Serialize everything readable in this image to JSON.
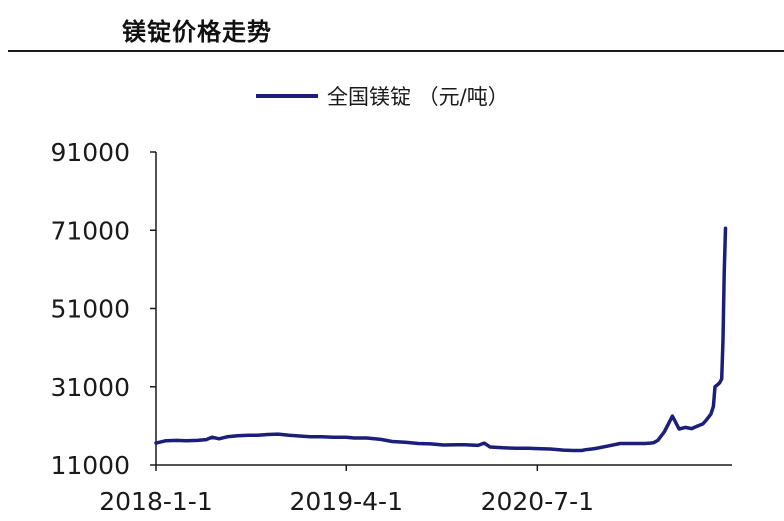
{
  "header": {
    "title": "镁锭价格走势"
  },
  "colors": {
    "series": "#1c1f7a",
    "axis": "#1a1a1a"
  },
  "chart_data": {
    "type": "line",
    "title": "",
    "xlabel": "",
    "ylabel": "",
    "ylim": [
      11000,
      91000
    ],
    "yticks": [
      11000,
      31000,
      51000,
      71000,
      91000
    ],
    "ytick_labels": [
      "11000",
      "31000",
      "51000",
      "71000",
      "91000"
    ],
    "xticks": [
      "2018-1-1",
      "2019-4-1",
      "2020-7-1"
    ],
    "xtick_labels": [
      "2018-1-1",
      "2019-4-1",
      "2020-7-1"
    ],
    "xlim": [
      "2018-01-01",
      "2021-09-30"
    ],
    "grid": false,
    "legend": "top-center",
    "series": [
      {
        "name": "全国镁锭 （元/吨）",
        "color": "#1c1f7a",
        "x": [
          "2018-01-01",
          "2018-01-25",
          "2018-02-20",
          "2018-03-15",
          "2018-04-10",
          "2018-05-01",
          "2018-05-15",
          "2018-06-01",
          "2018-06-20",
          "2018-07-15",
          "2018-08-10",
          "2018-09-01",
          "2018-09-25",
          "2018-10-20",
          "2018-11-15",
          "2018-12-10",
          "2019-01-05",
          "2019-02-01",
          "2019-03-01",
          "2019-04-01",
          "2019-04-20",
          "2019-05-20",
          "2019-06-20",
          "2019-07-20",
          "2019-08-20",
          "2019-09-20",
          "2019-10-20",
          "2019-11-20",
          "2019-12-20",
          "2020-01-10",
          "2020-02-10",
          "2020-02-25",
          "2020-03-10",
          "2020-04-10",
          "2020-05-10",
          "2020-06-10",
          "2020-07-01",
          "2020-08-01",
          "2020-09-01",
          "2020-09-25",
          "2020-10-15",
          "2020-10-25",
          "2020-11-15",
          "2020-12-15",
          "2021-01-15",
          "2021-02-15",
          "2021-03-15",
          "2021-03-28",
          "2021-04-05",
          "2021-04-15",
          "2021-05-01",
          "2021-05-20",
          "2021-06-05",
          "2021-06-20",
          "2021-07-05",
          "2021-07-20",
          "2021-08-01",
          "2021-08-10",
          "2021-08-20",
          "2021-08-26",
          "2021-08-30",
          "2021-09-05",
          "2021-09-10",
          "2021-09-15",
          "2021-09-18",
          "2021-09-21",
          "2021-09-24"
        ],
        "values": [
          16600,
          17200,
          17300,
          17200,
          17300,
          17500,
          18100,
          17700,
          18200,
          18500,
          18600,
          18600,
          18800,
          18900,
          18600,
          18400,
          18200,
          18200,
          18100,
          18100,
          17900,
          17900,
          17600,
          17000,
          16800,
          16500,
          16400,
          16100,
          16200,
          16200,
          16000,
          16600,
          15600,
          15400,
          15300,
          15300,
          15200,
          15100,
          14800,
          14700,
          14700,
          14900,
          15200,
          15800,
          16500,
          16500,
          16500,
          16600,
          16700,
          17300,
          19500,
          23500,
          20200,
          20600,
          20300,
          21000,
          21500,
          22600,
          24000,
          26000,
          31000,
          31500,
          32000,
          33000,
          43000,
          60000,
          71500
        ]
      }
    ]
  }
}
